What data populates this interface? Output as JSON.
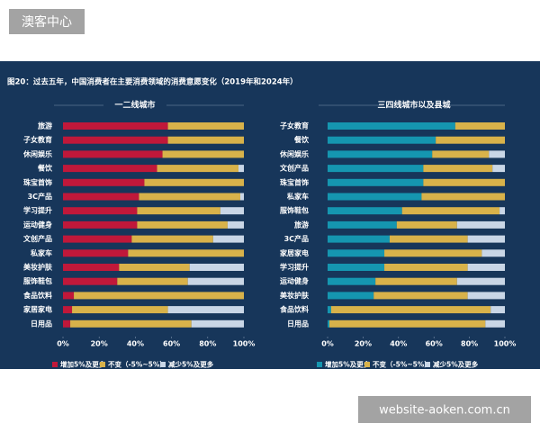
{
  "header": {
    "label": "澳客中心"
  },
  "panel_title": "图20：过去五年，中国消费者在主要消费领域的消费意愿变化（2019年和2024年）",
  "watermark": "website-aoken.com.cn",
  "chart_data": [
    {
      "type": "bar",
      "orientation": "horizontal",
      "stacked": true,
      "title": "一二线城市",
      "categories": [
        "旅游",
        "子女教育",
        "休闲娱乐",
        "餐饮",
        "珠宝首饰",
        "3C产品",
        "学习提升",
        "运动健身",
        "文创产品",
        "私家车",
        "美妆护肤",
        "服饰鞋包",
        "食品饮料",
        "家居家电",
        "日用品"
      ],
      "series": [
        {
          "name": "增加5%及更多",
          "color": "#c0183a",
          "values": [
            58,
            58,
            55,
            52,
            45,
            42,
            41,
            41,
            38,
            36,
            31,
            30,
            6,
            5,
            4
          ]
        },
        {
          "name": "不变（-5%~5%）",
          "color": "#d8b24a",
          "values": [
            42,
            42,
            45,
            45,
            55,
            56,
            46,
            50,
            45,
            64,
            39,
            39,
            94,
            53,
            67
          ]
        },
        {
          "name": "减少5%及更多",
          "color": "#c9d6e6",
          "values": [
            0,
            0,
            0,
            3,
            0,
            2,
            13,
            9,
            17,
            0,
            30,
            31,
            0,
            42,
            29
          ]
        }
      ],
      "xlim": [
        0,
        100
      ],
      "xticks": [
        {
          "value": 0,
          "label": "0%"
        },
        {
          "value": 20,
          "label": "20%"
        },
        {
          "value": 40,
          "label": "40%"
        },
        {
          "value": 60,
          "label": "60%"
        },
        {
          "value": 80,
          "label": "80%"
        },
        {
          "value": 100,
          "label": "100%"
        }
      ],
      "legend": "bottom"
    },
    {
      "type": "bar",
      "orientation": "horizontal",
      "stacked": true,
      "title": "三四线城市以及县城",
      "categories": [
        "子女教育",
        "餐饮",
        "休闲娱乐",
        "文创产品",
        "珠宝首饰",
        "私家车",
        "服饰鞋包",
        "旅游",
        "3C产品",
        "家居家电",
        "学习提升",
        "运动健身",
        "美妆护肤",
        "食品饮料",
        "日用品"
      ],
      "series": [
        {
          "name": "增加5%及更多",
          "color": "#1596b0",
          "values": [
            72,
            61,
            59,
            54,
            54,
            53,
            42,
            39,
            35,
            32,
            32,
            27,
            26,
            2,
            1
          ]
        },
        {
          "name": "不变（-5%~5%）",
          "color": "#d8b24a",
          "values": [
            28,
            39,
            32,
            39,
            46,
            47,
            55,
            34,
            44,
            55,
            47,
            46,
            53,
            90,
            88
          ]
        },
        {
          "name": "减少5%及更多",
          "color": "#c9d6e6",
          "values": [
            0,
            0,
            9,
            7,
            0,
            0,
            3,
            27,
            21,
            13,
            21,
            27,
            21,
            8,
            11
          ]
        }
      ],
      "xlim": [
        0,
        100
      ],
      "xticks": [
        {
          "value": 0,
          "label": "0%"
        },
        {
          "value": 20,
          "label": "20%"
        },
        {
          "value": 40,
          "label": "40%"
        },
        {
          "value": 60,
          "label": "60%"
        },
        {
          "value": 80,
          "label": "80%"
        },
        {
          "value": 100,
          "label": "100%"
        }
      ],
      "legend": "bottom"
    }
  ]
}
